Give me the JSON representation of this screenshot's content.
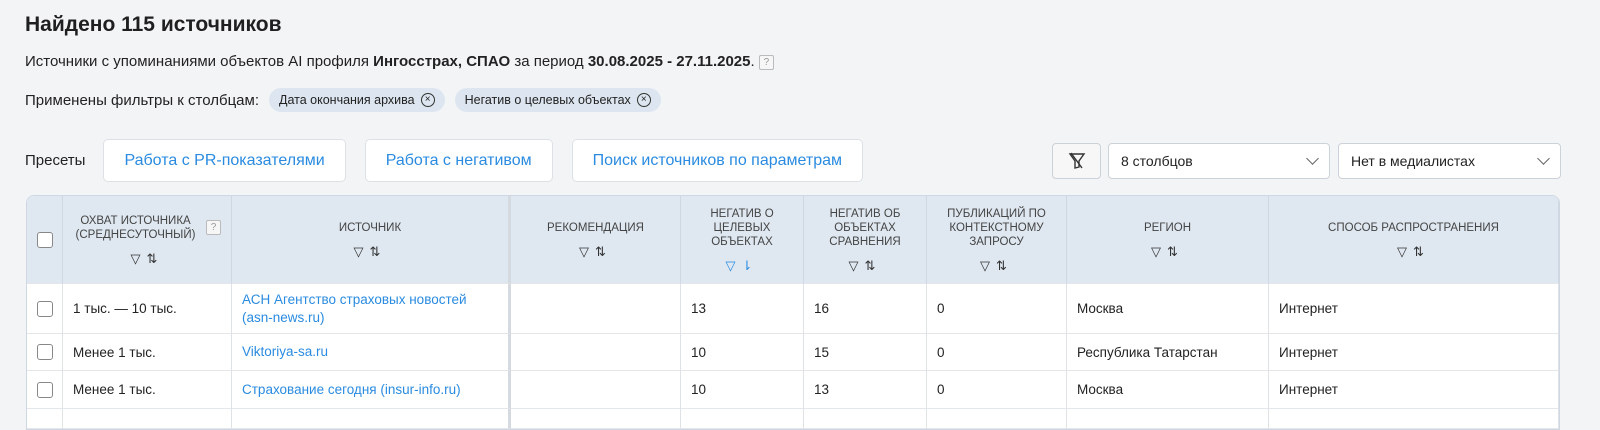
{
  "title": "Найдено 115 источников",
  "subtitle": {
    "prefix": "Источники с упоминаниями объектов AI профиля ",
    "profile": "Ингосстрах, СПАО",
    "middle": " за период ",
    "period": "30.08.2025 - 27.11.2025",
    "suffix": ".",
    "help": "?"
  },
  "filters": {
    "label": "Применены фильтры к столбцам:",
    "chips": [
      "Дата окончания архива",
      "Негатив о целевых объектах"
    ]
  },
  "presets": {
    "label": "Пресеты",
    "buttons": [
      "Работа с PR-показателями",
      "Работа с негативом",
      "Поиск источников по параметрам"
    ]
  },
  "controls": {
    "columns": "8 столбцов",
    "medialist": "Нет в медиалистах"
  },
  "table": {
    "columns": [
      "Охват источника (среднесуточный)",
      "Источник",
      "Рекомендация",
      "Негатив о целевых объектах",
      "Негатив об объектах сравнения",
      "Публикаций по контекстному запросу",
      "Регион",
      "Способ распространения"
    ],
    "header_help": "?",
    "icons": {
      "filter": "filter-icon",
      "sort": "sort-icon",
      "active_column": "Негатив о целевых объектах"
    },
    "rows": [
      [
        "1 тыс. — 10 тыс.",
        "АСН Агентство страховых новостей (asn-news.ru)",
        "",
        "13",
        "16",
        "0",
        "Москва",
        "Интернет"
      ],
      [
        "Менее 1 тыс.",
        "Viktoriya-sa.ru",
        "",
        "10",
        "15",
        "0",
        "Республика Татарстан",
        "Интернет"
      ],
      [
        "Менее 1 тыс.",
        "Страхование сегодня (insur-info.ru)",
        "",
        "10",
        "13",
        "0",
        "Москва",
        "Интернет"
      ]
    ]
  },
  "colors": {
    "accent": "#2a8be0",
    "header_bg": "#dfe8f1",
    "chip_bg": "#dde6f0"
  }
}
